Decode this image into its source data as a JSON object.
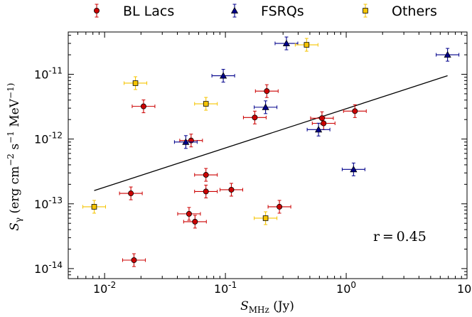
{
  "chart_data": {
    "type": "scatter",
    "x_scale": "log",
    "y_scale": "log",
    "xlim": [
      0.005,
      10
    ],
    "ylim": [
      7e-15,
      4.5e-11
    ],
    "x_ticks": [
      {
        "value": 0.01,
        "label": "10",
        "exp": "-2"
      },
      {
        "value": 0.1,
        "label": "10",
        "exp": "-1"
      },
      {
        "value": 1,
        "label": "10",
        "exp": "0"
      },
      {
        "value": 10,
        "label": "10",
        "exp": "1"
      }
    ],
    "y_ticks": [
      {
        "value": 1e-14,
        "label": "10",
        "exp": "-14"
      },
      {
        "value": 1e-13,
        "label": "10",
        "exp": "-13"
      },
      {
        "value": 1e-12,
        "label": "10",
        "exp": "-12"
      },
      {
        "value": 1e-11,
        "label": "10",
        "exp": "-11"
      }
    ],
    "xlabel": "S_MHz (Jy)",
    "ylabel": "S_γ (erg cm^-2 s^-1 MeV^-1)",
    "annotation": "r = 0.45",
    "legend_position": "top-outside",
    "grid": false,
    "series": [
      {
        "name": "BL Lacs",
        "marker": "circle",
        "color": "#cc0000",
        "points": [
          {
            "x": 0.0165,
            "y": 1.45e-13
          },
          {
            "x": 0.0175,
            "y": 1.35e-14
          },
          {
            "x": 0.021,
            "y": 3.2e-12
          },
          {
            "x": 0.052,
            "y": 9.5e-13
          },
          {
            "x": 0.05,
            "y": 7e-14
          },
          {
            "x": 0.056,
            "y": 5.3e-14
          },
          {
            "x": 0.069,
            "y": 2.8e-13
          },
          {
            "x": 0.069,
            "y": 1.55e-13
          },
          {
            "x": 0.112,
            "y": 1.65e-13
          },
          {
            "x": 0.175,
            "y": 2.15e-12
          },
          {
            "x": 0.22,
            "y": 5.5e-12
          },
          {
            "x": 0.28,
            "y": 9e-14
          },
          {
            "x": 0.63,
            "y": 2.1e-12
          },
          {
            "x": 0.65,
            "y": 1.75e-12
          },
          {
            "x": 1.18,
            "y": 2.7e-12
          }
        ]
      },
      {
        "name": "FSRQs",
        "marker": "triangle",
        "color": "#00008b",
        "points": [
          {
            "x": 0.047,
            "y": 9e-13
          },
          {
            "x": 0.096,
            "y": 9.5e-12
          },
          {
            "x": 0.215,
            "y": 3.1e-12
          },
          {
            "x": 0.32,
            "y": 3e-11
          },
          {
            "x": 0.59,
            "y": 1.4e-12
          },
          {
            "x": 1.15,
            "y": 3.4e-13
          },
          {
            "x": 6.9,
            "y": 2e-11
          }
        ]
      },
      {
        "name": "Others",
        "marker": "square",
        "color": "#f5c400",
        "points": [
          {
            "x": 0.0082,
            "y": 9e-14
          },
          {
            "x": 0.018,
            "y": 7.3e-12
          },
          {
            "x": 0.069,
            "y": 3.5e-12
          },
          {
            "x": 0.215,
            "y": 6e-14
          },
          {
            "x": 0.47,
            "y": 2.85e-11
          }
        ]
      }
    ],
    "fit_line": [
      {
        "x": 0.0082,
        "y": 1.6e-13
      },
      {
        "x": 6.9,
        "y": 9.5e-12
      }
    ]
  }
}
